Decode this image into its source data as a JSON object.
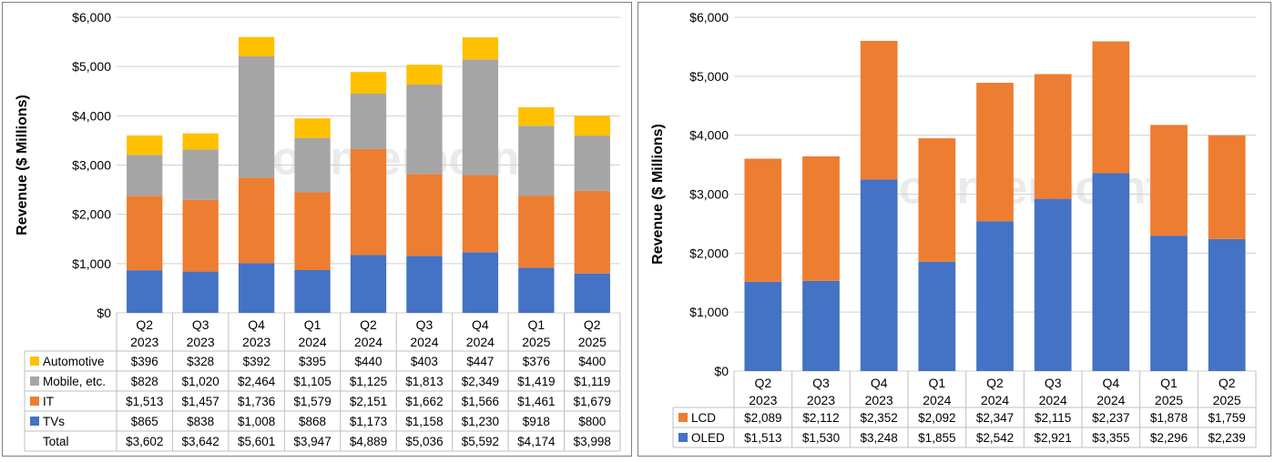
{
  "chart_data": [
    {
      "type": "bar",
      "stacked": true,
      "ylabel": "Revenue ($ Millions)",
      "ylim": [
        0,
        6000
      ],
      "yticks": [
        "$0",
        "$1,000",
        "$2,000",
        "$3,000",
        "$4,000",
        "$5,000",
        "$6,000"
      ],
      "grid": true,
      "legend": "data-table",
      "watermark": "Counterpoint",
      "categories": [
        "Q2 2023",
        "Q3 2023",
        "Q4 2023",
        "Q1 2024",
        "Q2 2024",
        "Q3 2024",
        "Q4 2024",
        "Q1 2025",
        "Q2 2025"
      ],
      "series": [
        {
          "name": "TVs",
          "color": "#4472c4",
          "values": [
            865,
            838,
            1008,
            868,
            1173,
            1158,
            1230,
            918,
            800
          ],
          "labels": [
            "$865",
            "$838",
            "$1,008",
            "$868",
            "$1,173",
            "$1,158",
            "$1,230",
            "$918",
            "$800"
          ]
        },
        {
          "name": "IT",
          "color": "#ed7d31",
          "values": [
            1513,
            1457,
            1736,
            1579,
            2151,
            1662,
            1566,
            1461,
            1679
          ],
          "labels": [
            "$1,513",
            "$1,457",
            "$1,736",
            "$1,579",
            "$2,151",
            "$1,662",
            "$1,566",
            "$1,461",
            "$1,679"
          ]
        },
        {
          "name": "Mobile, etc.",
          "color": "#a5a5a5",
          "values": [
            828,
            1020,
            2464,
            1105,
            1125,
            1813,
            2349,
            1419,
            1119
          ],
          "labels": [
            "$828",
            "$1,020",
            "$2,464",
            "$1,105",
            "$1,125",
            "$1,813",
            "$2,349",
            "$1,419",
            "$1,119"
          ]
        },
        {
          "name": "Automotive",
          "color": "#ffc000",
          "values": [
            396,
            328,
            392,
            395,
            440,
            403,
            447,
            376,
            400
          ],
          "labels": [
            "$396",
            "$328",
            "$392",
            "$395",
            "$440",
            "$403",
            "$447",
            "$376",
            "$400"
          ]
        }
      ],
      "total": {
        "name": "Total",
        "labels": [
          "$3,602",
          "$3,642",
          "$5,601",
          "$3,947",
          "$4,889",
          "$5,036",
          "$5,592",
          "$4,174",
          "$3,998"
        ]
      }
    },
    {
      "type": "bar",
      "stacked": true,
      "ylabel": "Revenue ($ Millions)",
      "ylim": [
        0,
        6000
      ],
      "yticks": [
        "$0",
        "$1,000",
        "$2,000",
        "$3,000",
        "$4,000",
        "$5,000",
        "$6,000"
      ],
      "grid": true,
      "legend": "data-table",
      "watermark": "Counterpoint",
      "categories": [
        "Q2 2023",
        "Q3 2023",
        "Q4 2023",
        "Q1 2024",
        "Q2 2024",
        "Q3 2024",
        "Q4 2024",
        "Q1 2025",
        "Q2 2025"
      ],
      "series": [
        {
          "name": "OLED",
          "color": "#4472c4",
          "values": [
            1513,
            1530,
            3248,
            1855,
            2542,
            2921,
            3355,
            2296,
            2239
          ],
          "labels": [
            "$1,513",
            "$1,530",
            "$3,248",
            "$1,855",
            "$2,542",
            "$2,921",
            "$3,355",
            "$2,296",
            "$2,239"
          ]
        },
        {
          "name": "LCD",
          "color": "#ed7d31",
          "values": [
            2089,
            2112,
            2352,
            2092,
            2347,
            2115,
            2237,
            1878,
            1759
          ],
          "labels": [
            "$2,089",
            "$2,112",
            "$2,352",
            "$2,092",
            "$2,347",
            "$2,115",
            "$2,237",
            "$1,878",
            "$1,759"
          ]
        }
      ]
    }
  ]
}
